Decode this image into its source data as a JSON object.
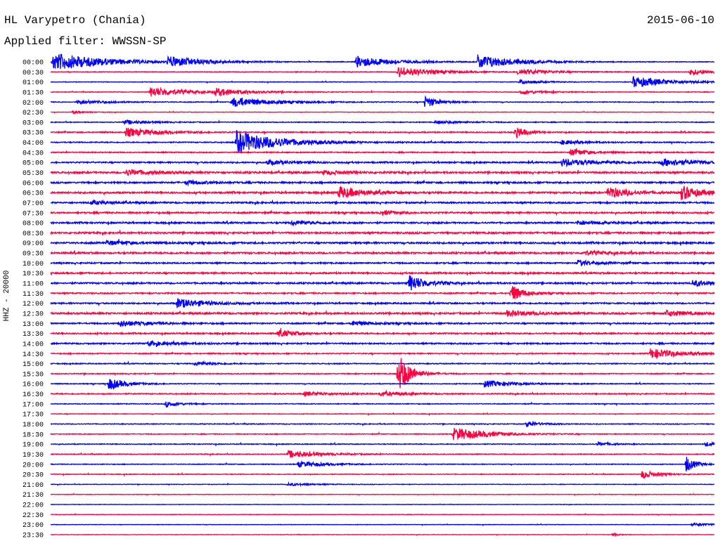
{
  "header": {
    "station": "HL Varypetro (Chania)",
    "filter": "Applied filter: WWSSN-SP",
    "date": "2015-06-10"
  },
  "chart_data": {
    "type": "line",
    "title": "HL Varypetro (Chania)",
    "ylabel": "HHZ - 20000",
    "row_minutes": 30,
    "colors": [
      "#0000ff",
      "#ff0040"
    ],
    "rows": [
      "00:00",
      "00:30",
      "01:00",
      "01:30",
      "02:00",
      "02:30",
      "03:00",
      "03:30",
      "04:00",
      "04:30",
      "05:00",
      "05:30",
      "06:00",
      "06:30",
      "07:00",
      "07:30",
      "08:00",
      "08:30",
      "09:00",
      "09:30",
      "10:00",
      "10:30",
      "11:00",
      "11:30",
      "12:00",
      "12:30",
      "13:00",
      "13:30",
      "14:00",
      "14:30",
      "15:00",
      "15:30",
      "16:00",
      "16:30",
      "17:00",
      "17:30",
      "18:00",
      "18:30",
      "19:00",
      "19:30",
      "20:00",
      "20:30",
      "21:00",
      "21:30",
      "22:00",
      "22:30",
      "23:00",
      "23:30"
    ],
    "noise": [
      0.8,
      0.8,
      0.7,
      0.8,
      1.0,
      0.6,
      1.0,
      1.4,
      1.3,
      1.4,
      1.8,
      2.2,
      2.0,
      2.2,
      2.0,
      2.0,
      2.0,
      2.2,
      2.2,
      2.2,
      1.8,
      2.0,
      2.0,
      1.6,
      1.8,
      2.2,
      1.8,
      1.8,
      1.8,
      1.4,
      1.2,
      1.2,
      1.0,
      1.4,
      1.0,
      0.8,
      1.0,
      1.0,
      1.0,
      1.0,
      0.9,
      0.9,
      0.7,
      0.6,
      0.5,
      0.6,
      0.6,
      0.5
    ],
    "events": [
      [
        [
          0.1,
          13,
          2.2
        ],
        [
          5.3,
          7,
          1.5
        ],
        [
          13.8,
          8,
          1.5
        ],
        [
          19.3,
          10,
          1.6
        ]
      ],
      [
        [
          15.7,
          7,
          1.5
        ],
        [
          21.1,
          4,
          1.4
        ],
        [
          28.9,
          4,
          1.3
        ]
      ],
      [
        [
          21.2,
          3,
          1.0
        ],
        [
          26.3,
          8,
          1.5
        ]
      ],
      [
        [
          4.5,
          7,
          1.5
        ],
        [
          7.4,
          5,
          1.3
        ],
        [
          21.2,
          3,
          1.0
        ]
      ],
      [
        [
          1.2,
          3,
          1.2
        ],
        [
          8.2,
          7,
          1.6
        ],
        [
          16.9,
          8,
          0.6
        ]
      ],
      [
        [
          1.0,
          2,
          0.5
        ]
      ],
      [
        [
          3.3,
          3,
          1.0
        ],
        [
          17.4,
          2,
          1.2
        ]
      ],
      [
        [
          3.4,
          6,
          1.3
        ],
        [
          21.0,
          10,
          0.4
        ]
      ],
      [
        [
          8.4,
          16,
          1.8
        ],
        [
          23.1,
          3,
          1.0
        ]
      ],
      [
        [
          23.5,
          5,
          0.8
        ]
      ],
      [
        [
          9.8,
          3,
          1.2
        ],
        [
          23.1,
          5,
          1.5
        ],
        [
          27.6,
          5,
          1.5
        ]
      ],
      [
        [
          3.4,
          4,
          1.2
        ],
        [
          12.3,
          3,
          1.0
        ]
      ],
      [
        [
          6.1,
          3,
          1.0
        ]
      ],
      [
        [
          13.0,
          9,
          1.0
        ],
        [
          25.2,
          9,
          0.8
        ],
        [
          28.5,
          10,
          0.8
        ]
      ],
      [
        [
          1.8,
          3,
          0.8
        ]
      ],
      [
        [
          14.9,
          3,
          0.8
        ]
      ],
      [
        [
          10.9,
          3,
          1.0
        ],
        [
          23.8,
          3,
          1.0
        ]
      ],
      [],
      [
        [
          2.5,
          3,
          1.2
        ]
      ],
      [
        [
          24.1,
          3,
          1.0
        ]
      ],
      [
        [
          23.8,
          4,
          0.8
        ]
      ],
      [],
      [
        [
          16.2,
          12,
          0.7
        ],
        [
          29.0,
          4,
          1.0
        ]
      ],
      [
        [
          20.8,
          13,
          0.5
        ]
      ],
      [
        [
          5.7,
          7,
          1.2
        ]
      ],
      [
        [
          20.6,
          4,
          1.2
        ],
        [
          27.8,
          4,
          1.0
        ]
      ],
      [
        [
          3.1,
          4,
          1.2
        ],
        [
          13.6,
          3,
          1.0
        ]
      ],
      [
        [
          10.3,
          6,
          0.6
        ]
      ],
      [
        [
          4.4,
          3,
          1.2
        ]
      ],
      [
        [
          27.1,
          7,
          1.3
        ]
      ],
      [
        [
          6.5,
          3,
          0.8
        ]
      ],
      [
        [
          15.7,
          30,
          0.5
        ]
      ],
      [
        [
          2.6,
          9,
          0.7
        ],
        [
          19.6,
          5,
          1.2
        ]
      ],
      [
        [
          11.4,
          3,
          1.2
        ],
        [
          14.9,
          3,
          1.0
        ]
      ],
      [
        [
          5.2,
          4,
          0.6
        ]
      ],
      [],
      [
        [
          21.5,
          4,
          0.6
        ]
      ],
      [
        [
          18.2,
          9,
          1.5
        ]
      ],
      [
        [
          24.7,
          3,
          0.6
        ],
        [
          29.6,
          3,
          0.5
        ]
      ],
      [
        [
          10.7,
          5,
          1.5
        ]
      ],
      [
        [
          11.2,
          4,
          1.2
        ],
        [
          28.7,
          12,
          0.4
        ]
      ],
      [
        [
          26.7,
          6,
          0.7
        ]
      ],
      [
        [
          10.7,
          2,
          1.0
        ]
      ],
      [],
      [],
      [],
      [
        [
          29.0,
          2,
          1.0
        ]
      ],
      [
        [
          25.4,
          2,
          0.3
        ]
      ]
    ]
  }
}
